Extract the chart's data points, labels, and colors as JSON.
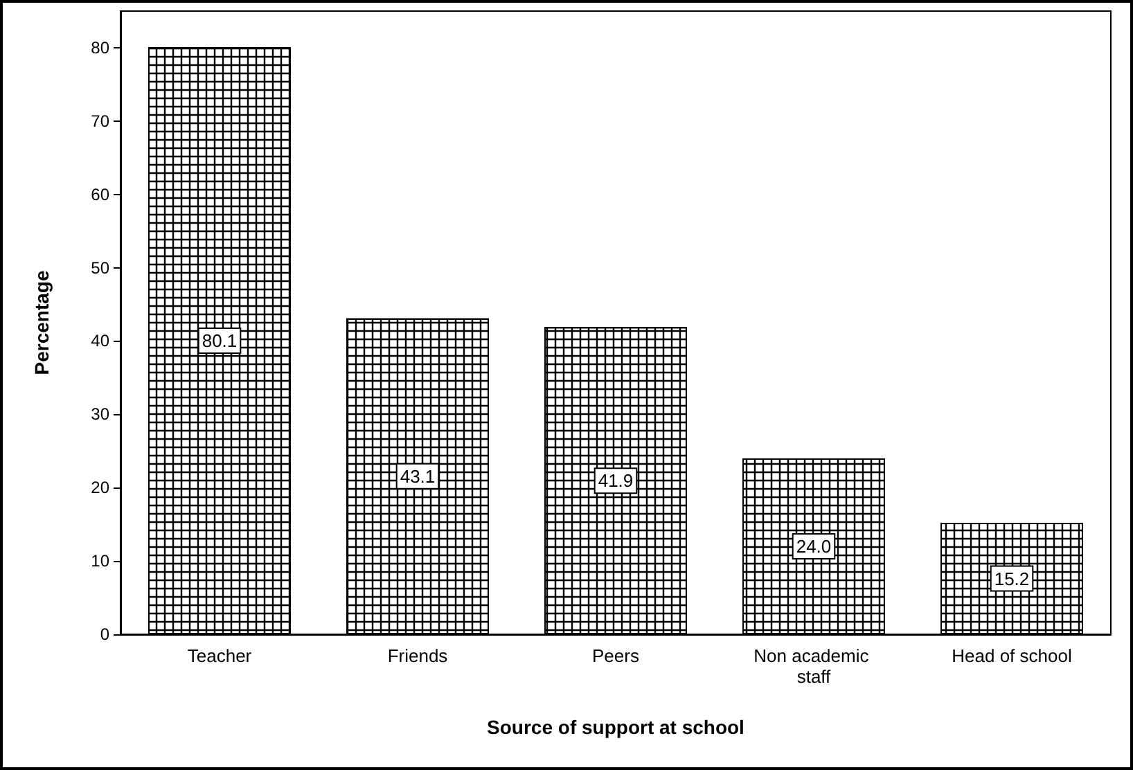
{
  "chart_data": {
    "type": "bar",
    "xlabel": "Source of support at school",
    "ylabel": "Percentage",
    "categories": [
      "Teacher",
      "Friends",
      "Peers",
      "Non academic staff",
      "Head of school"
    ],
    "values": [
      80.1,
      43.1,
      41.9,
      24.0,
      15.2
    ],
    "color": "#ffffff",
    "value_labels": [
      "80.1",
      "43.1",
      "41.9",
      "24.0",
      "15.2"
    ],
    "ylim": [
      0,
      85
    ],
    "yticks": [
      0,
      10,
      20,
      30,
      40,
      50,
      60,
      70,
      80
    ],
    "grid": false
  }
}
